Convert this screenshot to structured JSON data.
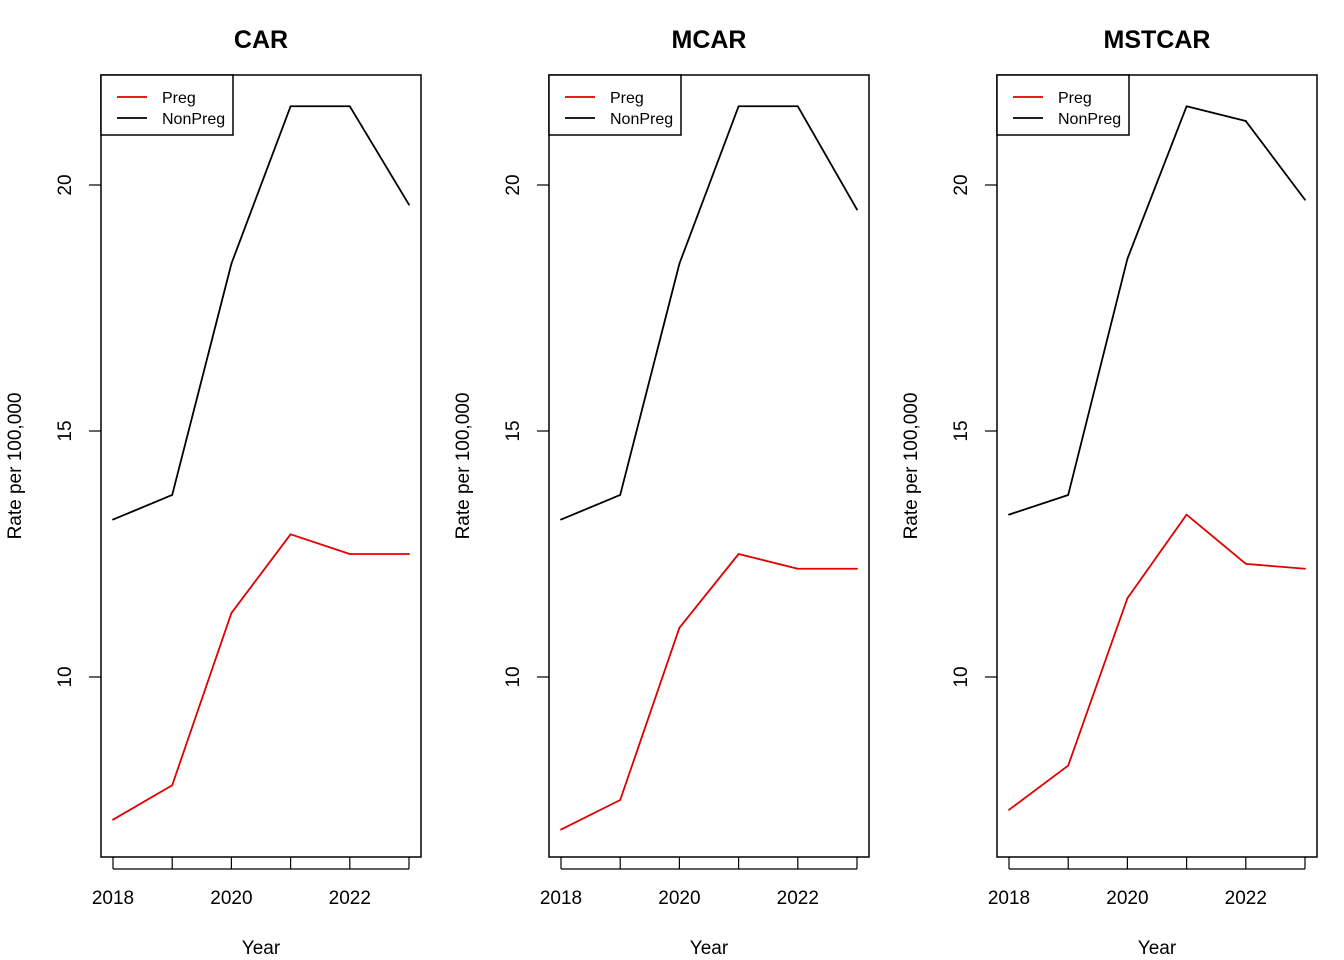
{
  "chart_data": [
    {
      "type": "line",
      "title": "CAR",
      "xlabel": "Year",
      "ylabel": "Rate per 100,000",
      "x": [
        2018,
        2019,
        2020,
        2021,
        2022,
        2023
      ],
      "xlim": [
        2018,
        2023
      ],
      "ylim": [
        7,
        22
      ],
      "xticks": [
        "2018",
        "2020",
        "2022"
      ],
      "yticks": [
        "10",
        "15",
        "20"
      ],
      "legend_position": "top-left",
      "grid": false,
      "series": [
        {
          "name": "Preg",
          "color": "#e00000",
          "values": [
            7.1,
            7.8,
            11.3,
            12.9,
            12.5,
            12.5
          ]
        },
        {
          "name": "NonPreg",
          "color": "#000000",
          "values": [
            13.2,
            13.7,
            18.4,
            21.6,
            21.6,
            19.6
          ]
        }
      ]
    },
    {
      "type": "line",
      "title": "MCAR",
      "xlabel": "Year",
      "ylabel": "Rate per 100,000",
      "x": [
        2018,
        2019,
        2020,
        2021,
        2022,
        2023
      ],
      "xlim": [
        2018,
        2023
      ],
      "ylim": [
        7,
        22
      ],
      "xticks": [
        "2018",
        "2020",
        "2022"
      ],
      "yticks": [
        "10",
        "15",
        "20"
      ],
      "legend_position": "top-left",
      "grid": false,
      "series": [
        {
          "name": "Preg",
          "color": "#e00000",
          "values": [
            6.9,
            7.5,
            11.0,
            12.5,
            12.2,
            12.2
          ]
        },
        {
          "name": "NonPreg",
          "color": "#000000",
          "values": [
            13.2,
            13.7,
            18.4,
            21.6,
            21.6,
            19.5
          ]
        }
      ]
    },
    {
      "type": "line",
      "title": "MSTCAR",
      "xlabel": "Year",
      "ylabel": "Rate per 100,000",
      "x": [
        2018,
        2019,
        2020,
        2021,
        2022,
        2023
      ],
      "xlim": [
        2018,
        2023
      ],
      "ylim": [
        7,
        22
      ],
      "xticks": [
        "2018",
        "2020",
        "2022"
      ],
      "yticks": [
        "10",
        "15",
        "20"
      ],
      "legend_position": "top-left",
      "grid": false,
      "series": [
        {
          "name": "Preg",
          "color": "#e00000",
          "values": [
            7.3,
            8.2,
            11.6,
            13.3,
            12.3,
            12.2
          ]
        },
        {
          "name": "NonPreg",
          "color": "#000000",
          "values": [
            13.3,
            13.7,
            18.5,
            21.6,
            21.3,
            19.7
          ]
        }
      ]
    }
  ]
}
